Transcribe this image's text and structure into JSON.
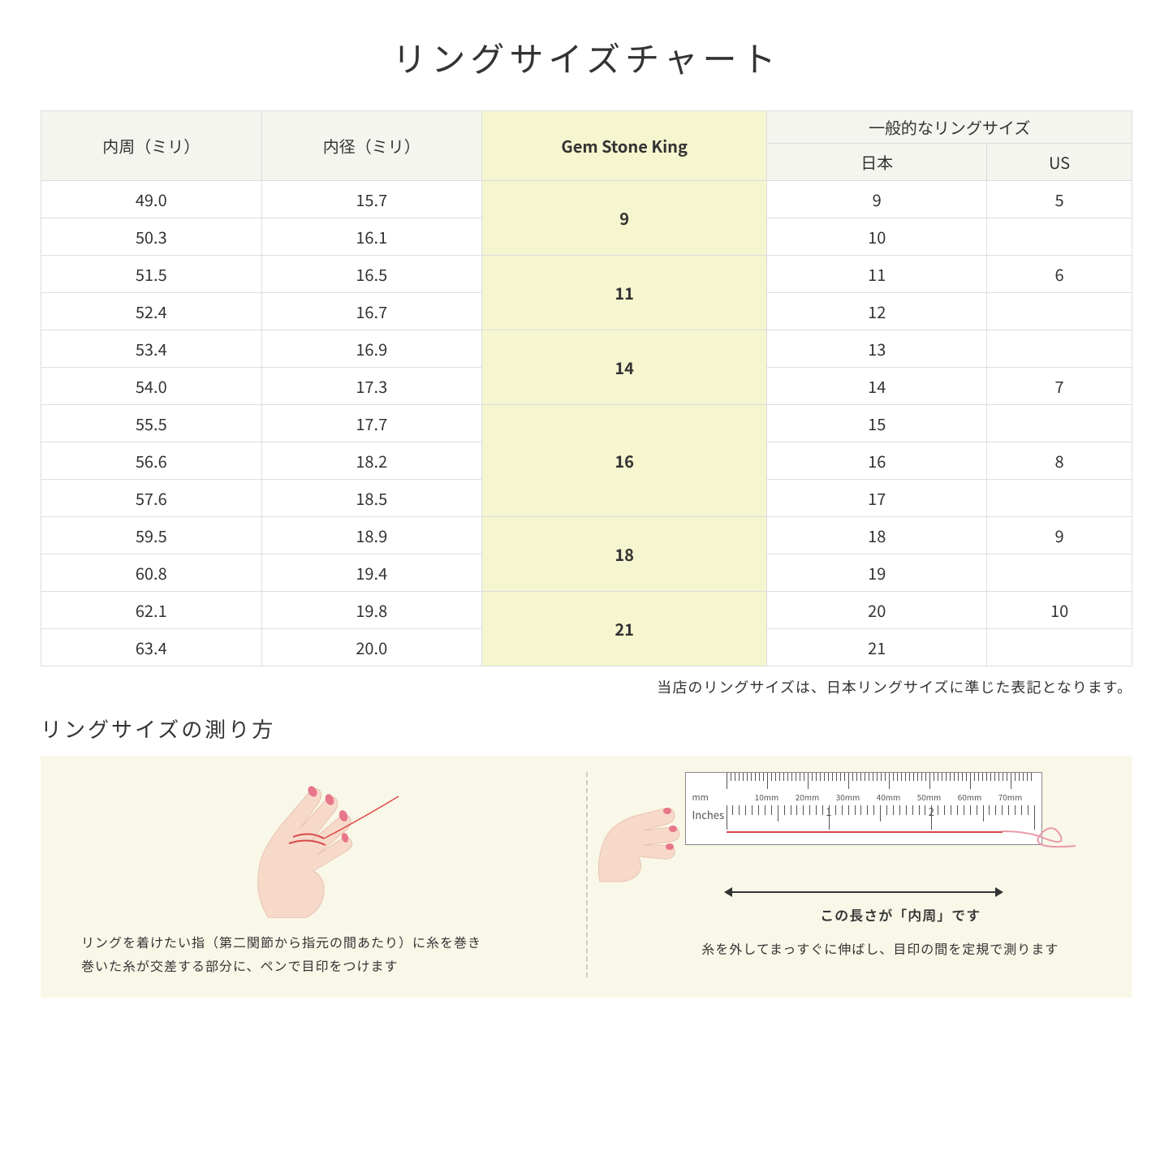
{
  "title": "リングサイズチャート",
  "table": {
    "headers": {
      "circumference": "内周（ミリ）",
      "diameter": "内径（ミリ）",
      "gemstoneking": "Gem Stone King",
      "general_group": "一般的なリングサイズ",
      "japan": "日本",
      "us": "US"
    },
    "groups": [
      {
        "gem": "9",
        "rows": [
          {
            "circ": "49.0",
            "dia": "15.7",
            "jp": "9",
            "us": "5"
          },
          {
            "circ": "50.3",
            "dia": "16.1",
            "jp": "10",
            "us": ""
          }
        ]
      },
      {
        "gem": "11",
        "rows": [
          {
            "circ": "51.5",
            "dia": "16.5",
            "jp": "11",
            "us": "6"
          },
          {
            "circ": "52.4",
            "dia": "16.7",
            "jp": "12",
            "us": ""
          }
        ]
      },
      {
        "gem": "14",
        "rows": [
          {
            "circ": "53.4",
            "dia": "16.9",
            "jp": "13",
            "us": ""
          },
          {
            "circ": "54.0",
            "dia": "17.3",
            "jp": "14",
            "us": "7"
          }
        ]
      },
      {
        "gem": "16",
        "rows": [
          {
            "circ": "55.5",
            "dia": "17.7",
            "jp": "15",
            "us": ""
          },
          {
            "circ": "56.6",
            "dia": "18.2",
            "jp": "16",
            "us": "8"
          },
          {
            "circ": "57.6",
            "dia": "18.5",
            "jp": "17",
            "us": ""
          }
        ]
      },
      {
        "gem": "18",
        "rows": [
          {
            "circ": "59.5",
            "dia": "18.9",
            "jp": "18",
            "us": "9"
          },
          {
            "circ": "60.8",
            "dia": "19.4",
            "jp": "19",
            "us": ""
          }
        ]
      },
      {
        "gem": "21",
        "rows": [
          {
            "circ": "62.1",
            "dia": "19.8",
            "jp": "20",
            "us": "10"
          },
          {
            "circ": "63.4",
            "dia": "20.0",
            "jp": "21",
            "us": ""
          }
        ]
      }
    ],
    "header_bg": "#f5f5f0",
    "highlight_bg": "#f5f5d0",
    "border_color": "#dddddd"
  },
  "note": "当店のリングサイズは、日本リングサイズに準じた表記となります。",
  "subtitle": "リングサイズの測り方",
  "measure": {
    "bg_color": "#f9f7e8",
    "left_caption_line1": "リングを着けたい指（第二関節から指元の間あたり）に糸を巻き",
    "left_caption_line2": "巻いた糸が交差する部分に、ペンで目印をつけます",
    "right_length_label": "この長さが「内周」です",
    "right_caption": "糸を外してまっすぐに伸ばし、目印の間を定規で測ります",
    "ruler": {
      "mm_label": "mm",
      "inches_label": "Inches",
      "mm_ticks": [
        "10mm",
        "20mm",
        "30mm",
        "40mm",
        "50mm",
        "60mm",
        "70mm"
      ],
      "inch_ticks": [
        "1",
        "2"
      ]
    },
    "hand_skin_color": "#f7d9ca",
    "nail_color": "#e8768a",
    "thread_color": "#d94848"
  }
}
